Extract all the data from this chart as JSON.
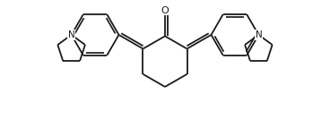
{
  "bg_color": "#ffffff",
  "line_color": "#1a1a1a",
  "line_width": 1.3,
  "figsize": [
    3.68,
    1.43
  ],
  "dpi": 100,
  "xlim": [
    -1.9,
    1.9
  ],
  "ylim": [
    -0.78,
    0.72
  ]
}
